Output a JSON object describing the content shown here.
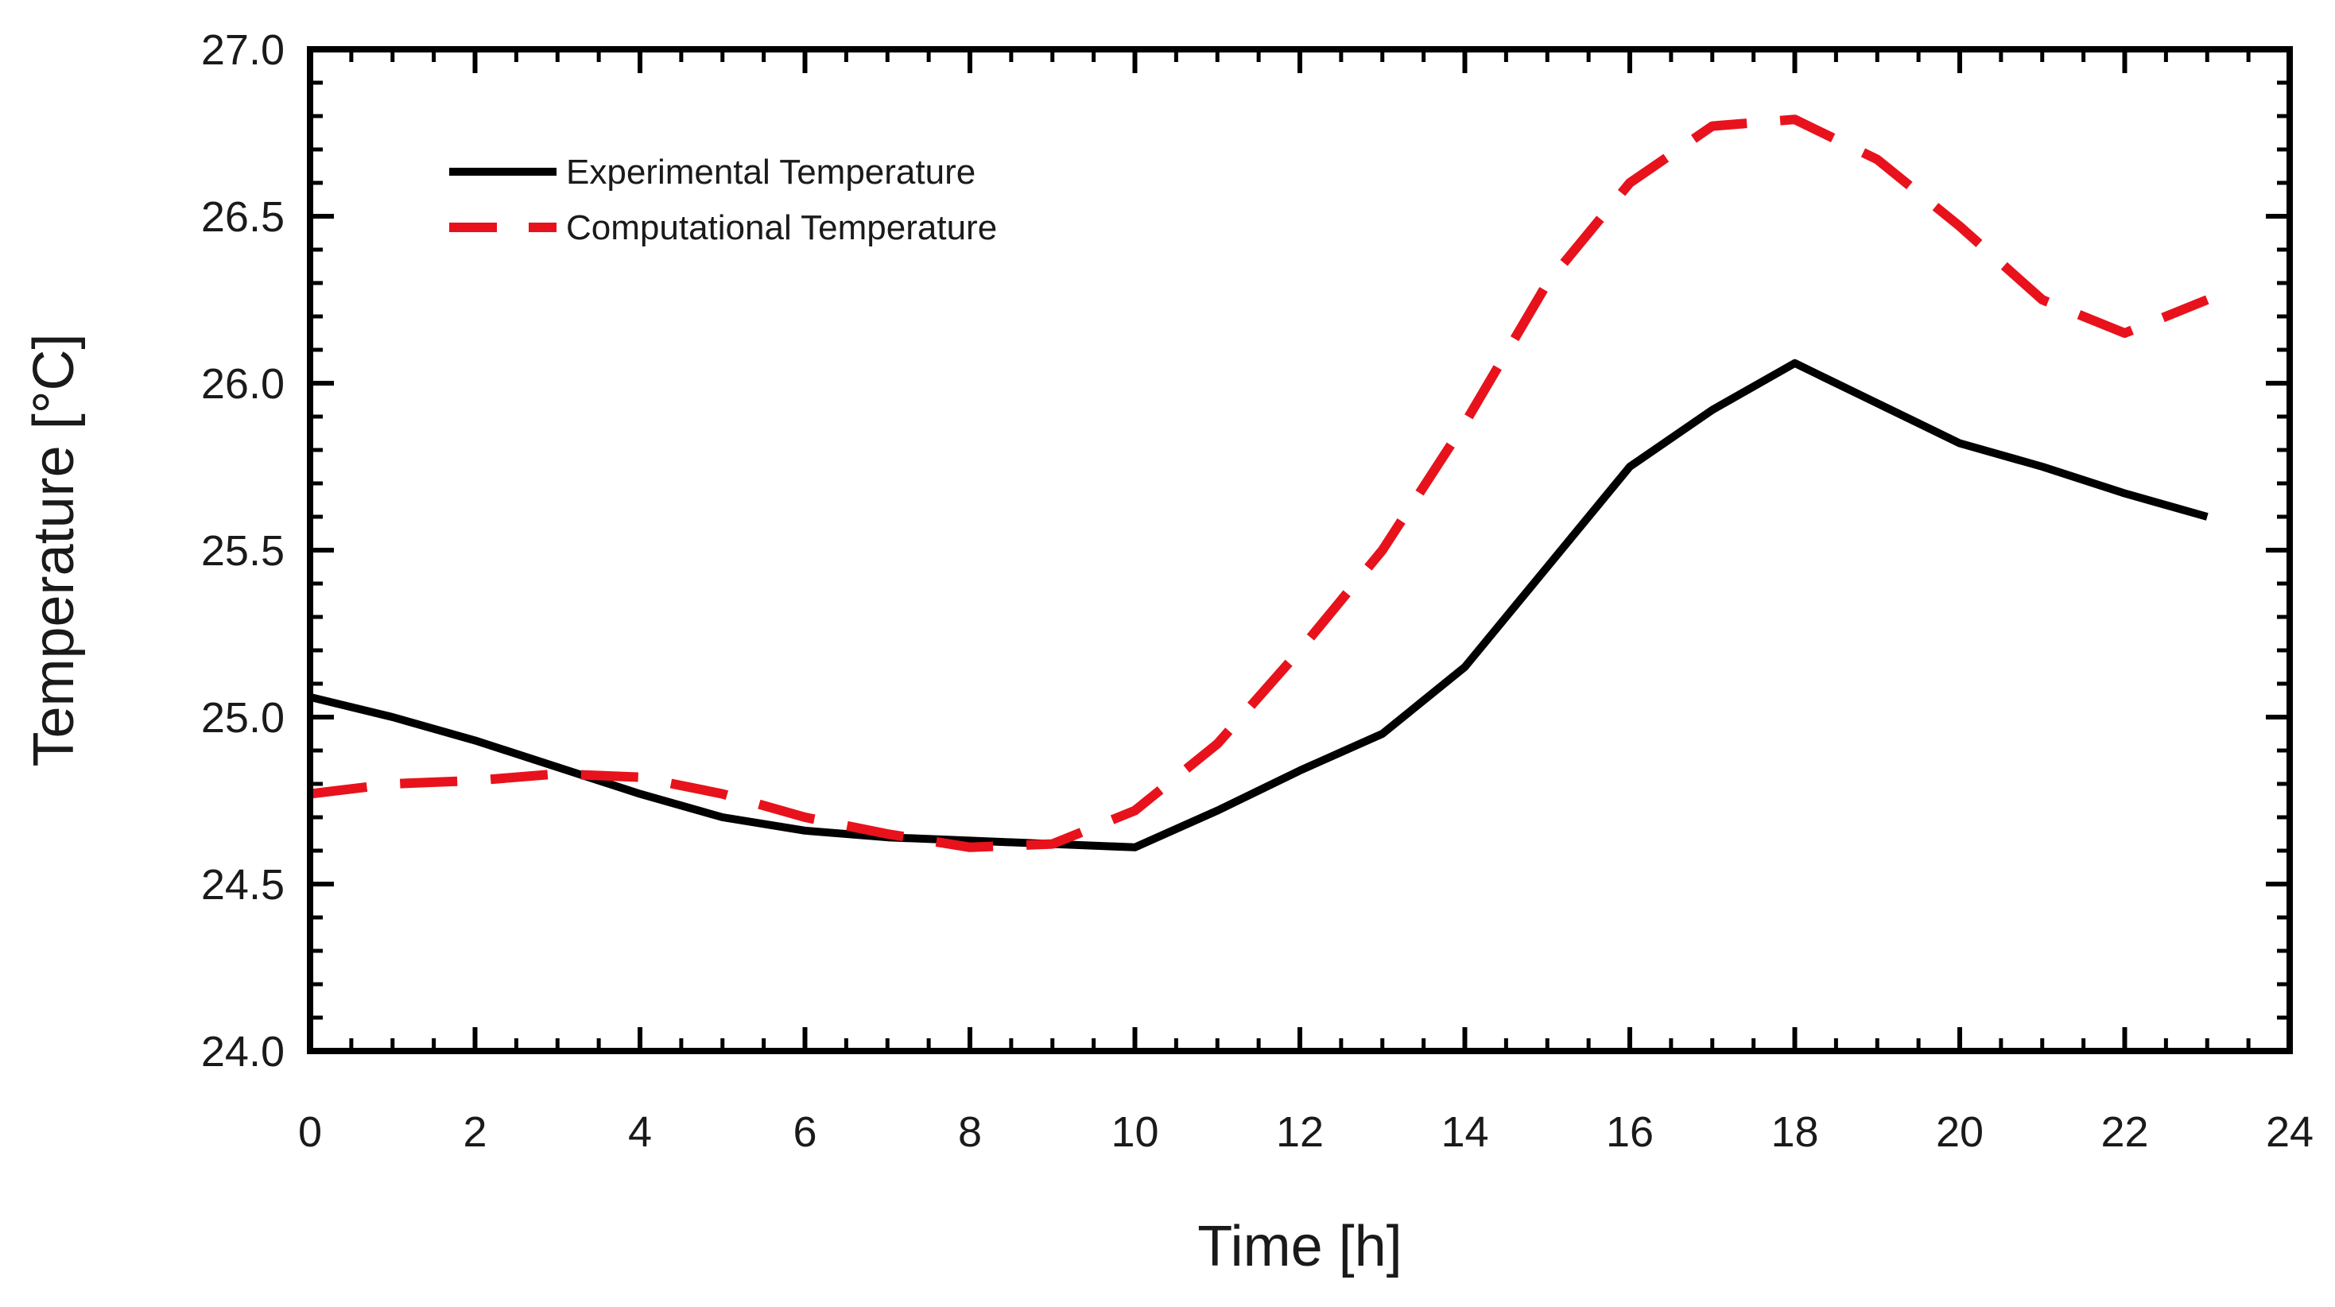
{
  "chart_data": {
    "type": "line",
    "title": "",
    "xlabel": "Time [h]",
    "ylabel": "Temperature [°C]",
    "xlim": [
      0,
      24
    ],
    "ylim": [
      24.0,
      27.0
    ],
    "xticks": [
      0,
      2,
      4,
      6,
      8,
      10,
      12,
      14,
      16,
      18,
      20,
      22,
      24
    ],
    "xtick_labels": [
      "0",
      "2",
      "4",
      "6",
      "8",
      "10",
      "12",
      "14",
      "16",
      "18",
      "20",
      "22",
      "24"
    ],
    "yticks": [
      24.0,
      24.5,
      25.0,
      25.5,
      26.0,
      26.5,
      27.0
    ],
    "ytick_labels": [
      "24.0",
      "24.5",
      "25.0",
      "25.5",
      "26.0",
      "26.5",
      "27.0"
    ],
    "x_minor_step": 0.5,
    "y_minor_step": 0.1,
    "grid": false,
    "legend_position": "top-left",
    "series": [
      {
        "name": "Experimental Temperature",
        "color": "#000000",
        "dash": "solid",
        "x": [
          0,
          1,
          2,
          3,
          4,
          5,
          6,
          7,
          8,
          9,
          10,
          11,
          12,
          13,
          14,
          15,
          16,
          17,
          18,
          19,
          20,
          21,
          22,
          23
        ],
        "y": [
          25.06,
          25.0,
          24.93,
          24.85,
          24.77,
          24.7,
          24.66,
          24.64,
          24.63,
          24.62,
          24.61,
          24.72,
          24.84,
          24.95,
          25.15,
          25.45,
          25.75,
          25.92,
          26.06,
          25.94,
          25.82,
          25.75,
          25.67,
          25.6
        ]
      },
      {
        "name": "Computational Temperature",
        "color": "#e8121c",
        "dash": "dashed",
        "x": [
          0,
          1,
          2,
          3,
          4,
          5,
          6,
          7,
          8,
          9,
          10,
          11,
          12,
          13,
          14,
          15,
          16,
          17,
          18,
          19,
          20,
          21,
          22,
          23
        ],
        "y": [
          24.77,
          24.8,
          24.81,
          24.83,
          24.82,
          24.77,
          24.7,
          24.65,
          24.61,
          24.62,
          24.72,
          24.92,
          25.2,
          25.5,
          25.88,
          26.3,
          26.6,
          26.77,
          26.79,
          26.67,
          26.47,
          26.25,
          26.15,
          26.25
        ]
      }
    ]
  }
}
